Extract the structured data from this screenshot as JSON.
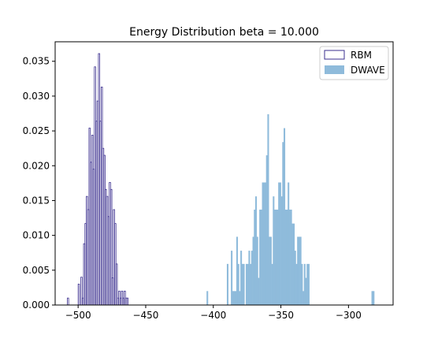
{
  "chart_data": {
    "type": "bar",
    "title": "Energy Distribution beta = 10.000",
    "xlabel": "",
    "ylabel": "",
    "xlim": [
      -517,
      -267
    ],
    "ylim": [
      0,
      0.0378
    ],
    "xticks": [
      -500,
      -450,
      -400,
      -350,
      -300
    ],
    "xtick_labels": [
      "−500",
      "−450",
      "−400",
      "−350",
      "−300"
    ],
    "yticks": [
      0,
      0.005,
      0.01,
      0.015,
      0.02,
      0.025,
      0.03,
      0.035
    ],
    "ytick_labels": [
      "0.000",
      "0.005",
      "0.010",
      "0.015",
      "0.020",
      "0.025",
      "0.030",
      "0.035"
    ],
    "grid": false,
    "legend_position": "top-right",
    "bin_width": 1,
    "series": [
      {
        "name": "RBM",
        "style": "step-outline",
        "color": "#3b2f8f",
        "bin_starts": [
          -508,
          -507,
          -506,
          -505,
          -504,
          -503,
          -502,
          -501,
          -500,
          -499,
          -498,
          -497,
          -496,
          -495,
          -494,
          -493,
          -492,
          -491,
          -490,
          -489,
          -488,
          -487,
          -486,
          -485,
          -484,
          -483,
          -482,
          -481,
          -480,
          -479,
          -478,
          -477,
          -476,
          -475,
          -474,
          -473,
          -472,
          -471,
          -470,
          -469,
          -468,
          -467,
          -466,
          -465,
          -464,
          -463,
          -462,
          -461,
          -460,
          -459,
          -458,
          -457,
          -456,
          -455,
          -454,
          -453,
          -452,
          -451,
          -450,
          -449,
          -448,
          -447,
          -446,
          -445,
          -444,
          -443,
          -442,
          -441,
          -440,
          -439,
          -438,
          -437,
          -436,
          -435,
          -434,
          -433,
          -432,
          -431,
          -430,
          -429,
          -428,
          -427
        ],
        "values": [
          0.001,
          0,
          0,
          0,
          0,
          0,
          0,
          0,
          0.003,
          0,
          0.004,
          0.001,
          0.0088,
          0.0117,
          0.0156,
          0.0137,
          0.0254,
          0.0205,
          0.0244,
          0.0195,
          0.0342,
          0.0264,
          0.0293,
          0.0361,
          0.0264,
          0.0313,
          0.0225,
          0.0215,
          0.0166,
          0.0156,
          0.0127,
          0.0176,
          0.0166,
          0.0039,
          0.0137,
          0.0117,
          0.0059,
          0.001,
          0.002,
          0.001,
          0.002,
          0.001,
          0.002,
          0.001,
          0.001,
          0,
          0,
          0,
          0,
          0,
          0,
          0,
          0,
          0,
          0,
          0,
          0,
          0,
          0,
          0,
          0,
          0,
          0,
          0,
          0,
          0,
          0,
          0,
          0,
          0,
          0,
          0,
          0,
          0,
          0,
          0,
          0,
          0,
          0,
          0,
          0,
          0
        ]
      },
      {
        "name": "DWAVE",
        "style": "filled",
        "color": "#8fbbdb",
        "bin_starts": [
          -405,
          -404,
          -403,
          -402,
          -401,
          -400,
          -399,
          -398,
          -397,
          -396,
          -395,
          -394,
          -393,
          -392,
          -391,
          -390,
          -389,
          -388,
          -387,
          -386,
          -385,
          -384,
          -383,
          -382,
          -381,
          -380,
          -379,
          -378,
          -377,
          -376,
          -375,
          -374,
          -373,
          -372,
          -371,
          -370,
          -369,
          -368,
          -367,
          -366,
          -365,
          -364,
          -363,
          -362,
          -361,
          -360,
          -359,
          -358,
          -357,
          -356,
          -355,
          -354,
          -353,
          -352,
          -351,
          -350,
          -349,
          -348,
          -347,
          -346,
          -345,
          -344,
          -343,
          -342,
          -341,
          -340,
          -339,
          -338,
          -337,
          -336,
          -335,
          -334,
          -333,
          -332,
          -331,
          -330,
          -329,
          -328,
          -327,
          -326,
          -325,
          -324,
          -323,
          -322,
          -321,
          -320,
          -319,
          -318,
          -317,
          -316,
          -315,
          -314,
          -313,
          -312,
          -311,
          -310,
          -309,
          -308,
          -307,
          -306,
          -305,
          -304,
          -303,
          -302,
          -301,
          -300,
          -299,
          -298,
          -297,
          -296,
          -295,
          -294,
          -293,
          -292,
          -291,
          -290,
          -289,
          -288,
          -287,
          -286,
          -285,
          -284,
          -283,
          -282,
          -281,
          -280
        ],
        "values": [
          0.002,
          0,
          0,
          0,
          0,
          0,
          0,
          0,
          0,
          0,
          0,
          0,
          0,
          0,
          0,
          0.0059,
          0,
          0,
          0.0078,
          0.002,
          0.002,
          0.002,
          0.0098,
          0.0059,
          0.002,
          0.0078,
          0.0059,
          0.0059,
          0,
          0.0059,
          0.0059,
          0.0078,
          0.0059,
          0.0078,
          0.0098,
          0.0137,
          0.0156,
          0.0098,
          0.0039,
          0.0137,
          0.0137,
          0.0176,
          0.0176,
          0.0176,
          0.0215,
          0.0274,
          0.0098,
          0.0098,
          0.0059,
          0.0156,
          0.0137,
          0.0137,
          0.0137,
          0.0176,
          0.0176,
          0.0156,
          0.0234,
          0.0254,
          0.0137,
          0.0137,
          0.0176,
          0.0137,
          0.0137,
          0.0117,
          0.0117,
          0.0078,
          0.0059,
          0.0098,
          0.0098,
          0.0098,
          0.0059,
          0.002,
          0.0059,
          0.0039,
          0.0059,
          0.0059,
          0,
          0,
          0,
          0,
          0,
          0,
          0,
          0,
          0,
          0,
          0,
          0,
          0,
          0,
          0,
          0,
          0,
          0,
          0,
          0,
          0,
          0,
          0,
          0,
          0,
          0,
          0,
          0,
          0,
          0,
          0,
          0,
          0,
          0,
          0,
          0,
          0,
          0,
          0,
          0,
          0,
          0,
          0,
          0,
          0,
          0,
          0.002,
          0.002,
          0,
          0,
          0,
          0,
          0,
          0,
          0.002
        ]
      }
    ]
  }
}
